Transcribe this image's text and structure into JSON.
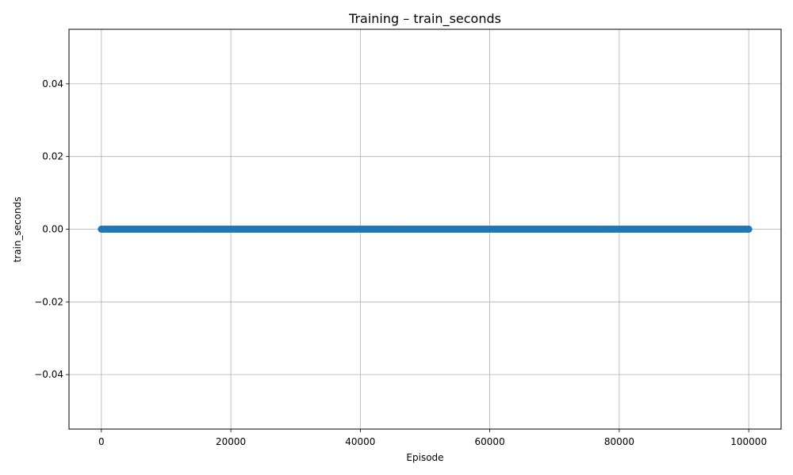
{
  "chart_data": {
    "type": "line",
    "title": "Training – train_seconds",
    "xlabel": "Episode",
    "ylabel": "train_seconds",
    "xlim": [
      -5000,
      105000
    ],
    "ylim": [
      -0.055,
      0.055
    ],
    "xticks": [
      0,
      20000,
      40000,
      60000,
      80000,
      100000
    ],
    "xtick_labels": [
      "0",
      "20000",
      "40000",
      "60000",
      "80000",
      "100000"
    ],
    "yticks": [
      -0.04,
      -0.02,
      0.0,
      0.02,
      0.04
    ],
    "ytick_labels": [
      "−0.04",
      "−0.02",
      "0.00",
      "0.02",
      "0.04"
    ],
    "grid": true,
    "series": [
      {
        "color": "#1f77b4",
        "marker": "circle",
        "x": [
          0,
          100000
        ],
        "y": [
          0.0,
          0.0
        ],
        "note_on_density": ""
      }
    ]
  }
}
